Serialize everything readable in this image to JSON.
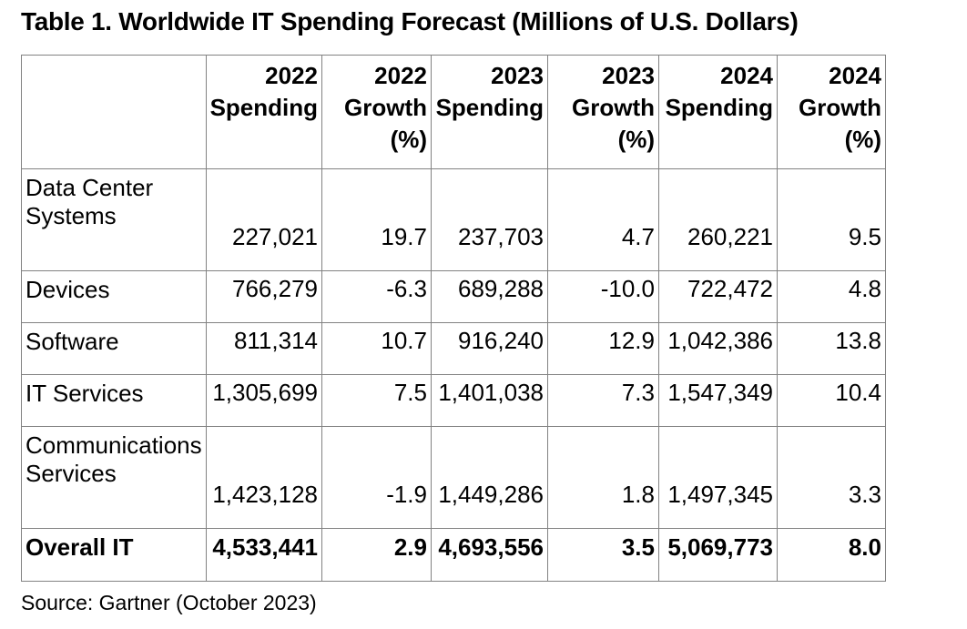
{
  "chart_data": {
    "type": "table",
    "title": "Table 1. Worldwide IT Spending Forecast (Millions of U.S. Dollars)",
    "source_note": "Source: Gartner (October 2023)",
    "units": "Millions of U.S. Dollars",
    "columns": [
      "",
      "2022\nSpending",
      "2022\nGrowth\n(%)",
      "2023\nSpending",
      "2023\nGrowth\n(%)",
      "2024\nSpending",
      "2024\nGrowth\n(%)"
    ],
    "rows": [
      {
        "label": "Data Center\nSystems",
        "values": [
          "227,021",
          "19.7",
          "237,703",
          "4.7",
          "260,221",
          "9.5"
        ],
        "emphasis": false
      },
      {
        "label": "Devices",
        "values": [
          "766,279",
          "-6.3",
          "689,288",
          "-10.0",
          "722,472",
          "4.8"
        ],
        "emphasis": false
      },
      {
        "label": "Software",
        "values": [
          "811,314",
          "10.7",
          "916,240",
          "12.9",
          "1,042,386",
          "13.8"
        ],
        "emphasis": false
      },
      {
        "label": "IT Services",
        "values": [
          "1,305,699",
          "7.5",
          "1,401,038",
          "7.3",
          "1,547,349",
          "10.4"
        ],
        "emphasis": false
      },
      {
        "label": "Communications\nServices",
        "values": [
          "1,423,128",
          "-1.9",
          "1,449,286",
          "1.8",
          "1,497,345",
          "3.3"
        ],
        "emphasis": false
      },
      {
        "label": "Overall IT",
        "values": [
          "4,533,441",
          "2.9",
          "4,693,556",
          "3.5",
          "5,069,773",
          "8.0"
        ],
        "emphasis": true
      }
    ],
    "colors": {
      "text": "#000000",
      "border": "#828282",
      "background": "#ffffff"
    }
  }
}
